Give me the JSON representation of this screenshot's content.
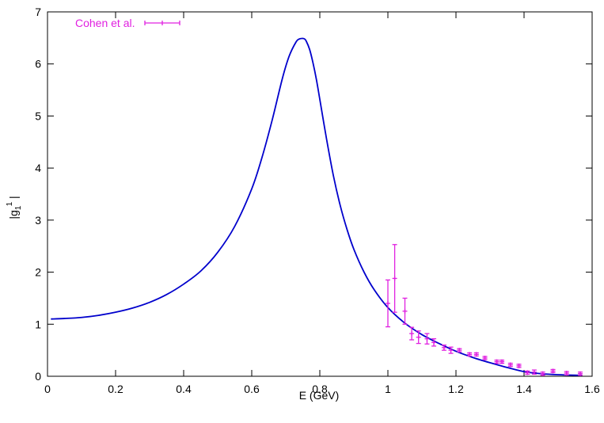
{
  "chart_data": {
    "type": "line",
    "title": "",
    "xlabel": "E (GeV)",
    "ylabel_main": "|g",
    "ylabel_sub": "1",
    "ylabel_sup": "1",
    "ylabel_end": " |",
    "xlim": [
      0,
      1.6
    ],
    "ylim": [
      0,
      7
    ],
    "x_ticks": [
      "0",
      "0.2",
      "0.4",
      "0.6",
      "0.8",
      "1",
      "1.2",
      "1.4",
      "1.6"
    ],
    "y_ticks": [
      "0",
      "1",
      "2",
      "3",
      "4",
      "5",
      "6",
      "7"
    ],
    "grid": false,
    "legend_position": "top-left",
    "colors": {
      "curve": "#0000cc",
      "data": "#e020e0",
      "axis": "#000000"
    },
    "curve": {
      "x": [
        0.01,
        0.05,
        0.1,
        0.15,
        0.2,
        0.25,
        0.3,
        0.35,
        0.4,
        0.45,
        0.5,
        0.55,
        0.6,
        0.63,
        0.66,
        0.69,
        0.71,
        0.73,
        0.74,
        0.75,
        0.755,
        0.76,
        0.77,
        0.78,
        0.79,
        0.8,
        0.82,
        0.84,
        0.86,
        0.88,
        0.9,
        0.93,
        0.96,
        1.0,
        1.05,
        1.1,
        1.15,
        1.2,
        1.25,
        1.3,
        1.35,
        1.4,
        1.45,
        1.5,
        1.55,
        1.57
      ],
      "y": [
        1.1,
        1.11,
        1.13,
        1.17,
        1.23,
        1.31,
        1.42,
        1.57,
        1.77,
        2.02,
        2.38,
        2.88,
        3.6,
        4.2,
        4.92,
        5.72,
        6.15,
        6.42,
        6.48,
        6.49,
        6.48,
        6.44,
        6.28,
        6.02,
        5.7,
        5.32,
        4.55,
        3.85,
        3.28,
        2.82,
        2.44,
        2.0,
        1.66,
        1.32,
        1.02,
        0.8,
        0.63,
        0.48,
        0.36,
        0.26,
        0.17,
        0.09,
        0.05,
        0.03,
        0.02,
        0.02
      ]
    },
    "series": [
      {
        "name": "Cohen et al.",
        "points": [
          {
            "x": 1.0,
            "y": 1.4,
            "err": 0.45
          },
          {
            "x": 1.02,
            "y": 1.88,
            "err": 0.65
          },
          {
            "x": 1.05,
            "y": 1.25,
            "err": 0.25
          },
          {
            "x": 1.07,
            "y": 0.82,
            "err": 0.12
          },
          {
            "x": 1.09,
            "y": 0.75,
            "err": 0.12
          },
          {
            "x": 1.115,
            "y": 0.72,
            "err": 0.1
          },
          {
            "x": 1.135,
            "y": 0.65,
            "err": 0.07
          },
          {
            "x": 1.165,
            "y": 0.55,
            "err": 0.05
          },
          {
            "x": 1.185,
            "y": 0.5,
            "err": 0.06
          },
          {
            "x": 1.21,
            "y": 0.5,
            "err": 0.03
          },
          {
            "x": 1.24,
            "y": 0.42,
            "err": 0.03
          },
          {
            "x": 1.26,
            "y": 0.42,
            "err": 0.03
          },
          {
            "x": 1.285,
            "y": 0.35,
            "err": 0.03
          },
          {
            "x": 1.32,
            "y": 0.28,
            "err": 0.03
          },
          {
            "x": 1.335,
            "y": 0.28,
            "err": 0.03
          },
          {
            "x": 1.36,
            "y": 0.22,
            "err": 0.03
          },
          {
            "x": 1.385,
            "y": 0.2,
            "err": 0.03
          },
          {
            "x": 1.41,
            "y": 0.07,
            "err": 0.03
          },
          {
            "x": 1.43,
            "y": 0.08,
            "err": 0.04
          },
          {
            "x": 1.455,
            "y": 0.05,
            "err": 0.03
          },
          {
            "x": 1.485,
            "y": 0.1,
            "err": 0.03
          },
          {
            "x": 1.525,
            "y": 0.06,
            "err": 0.03
          },
          {
            "x": 1.565,
            "y": 0.05,
            "err": 0.03
          }
        ]
      }
    ]
  }
}
